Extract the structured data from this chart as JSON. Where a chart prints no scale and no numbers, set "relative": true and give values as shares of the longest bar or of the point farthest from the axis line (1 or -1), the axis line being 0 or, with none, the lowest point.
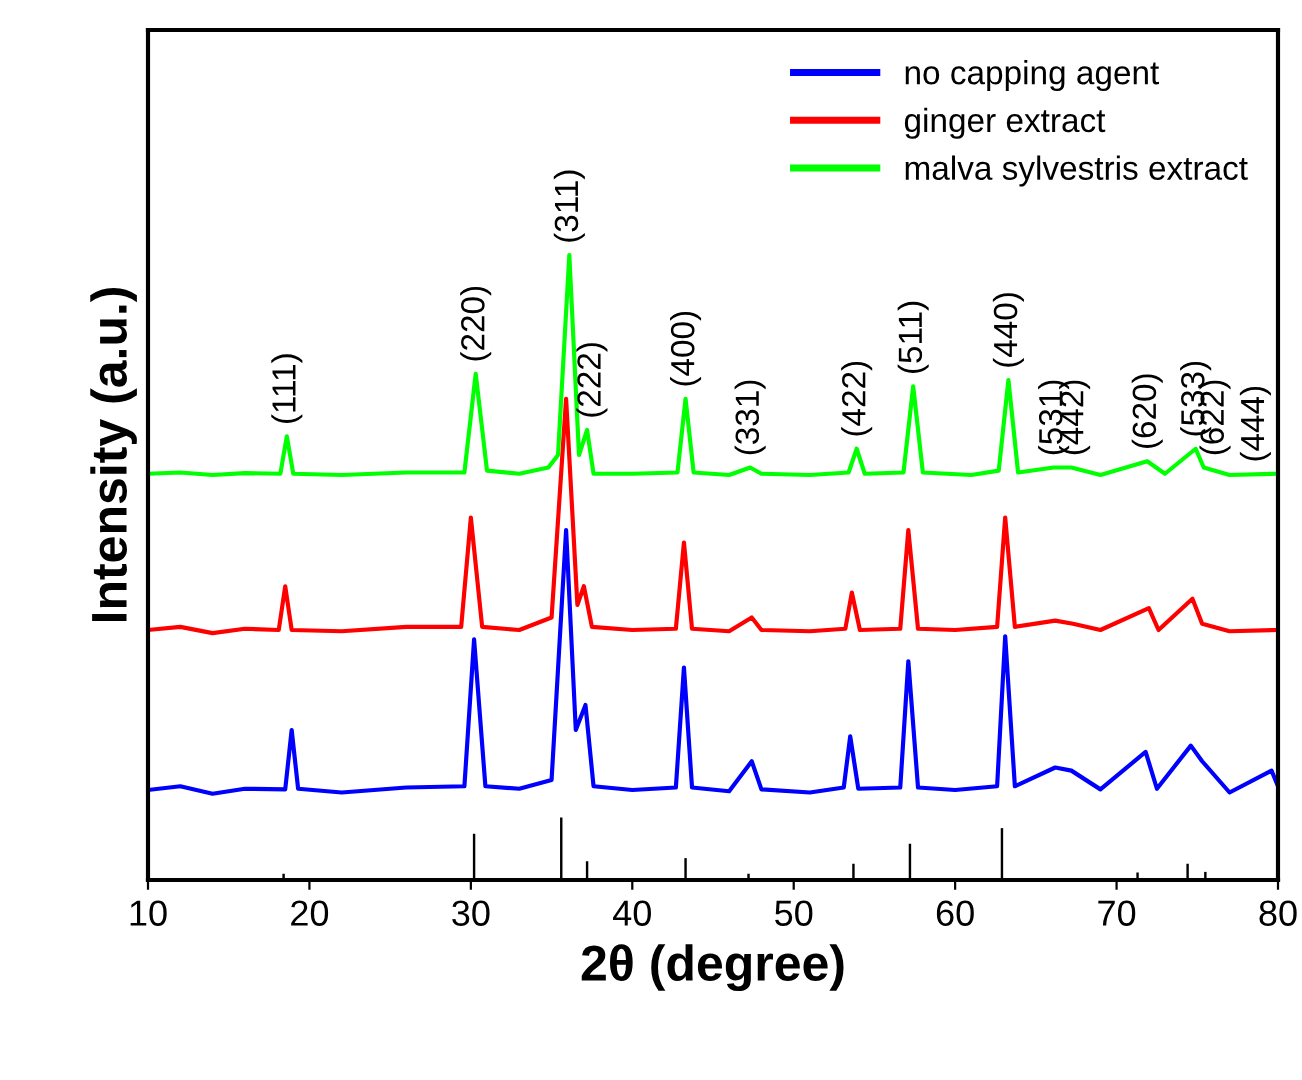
{
  "chart_data": {
    "type": "line",
    "relative": true,
    "xlabel": "2θ (degree)",
    "ylabel": "Intensity (a.u.)",
    "xlim": [
      10,
      80
    ],
    "xticks": [
      10,
      20,
      30,
      40,
      50,
      60,
      70,
      80
    ],
    "legend": "top right",
    "grid": false,
    "series": [
      {
        "name": "no capping agent",
        "color": "#0000ff",
        "x": [
          10,
          12,
          14,
          16,
          18.5,
          18.9,
          19.3,
          22,
          26,
          29.6,
          30.2,
          30.9,
          33,
          35.0,
          35.9,
          36.5,
          37.1,
          37.6,
          40,
          42.7,
          43.2,
          43.7,
          46,
          47.4,
          48,
          51,
          53.1,
          53.5,
          54.0,
          56.6,
          57.1,
          57.7,
          60,
          62.6,
          63.1,
          63.7,
          66.2,
          67.2,
          69,
          71.8,
          72.5,
          74.6,
          75.3,
          77,
          79.6,
          80
        ],
        "values": [
          0.144,
          0.15,
          0.138,
          0.146,
          0.145,
          0.24,
          0.146,
          0.14,
          0.148,
          0.15,
          0.385,
          0.15,
          0.146,
          0.16,
          0.56,
          0.24,
          0.28,
          0.15,
          0.144,
          0.148,
          0.34,
          0.148,
          0.142,
          0.19,
          0.145,
          0.14,
          0.148,
          0.23,
          0.146,
          0.148,
          0.35,
          0.148,
          0.144,
          0.15,
          0.39,
          0.15,
          0.18,
          0.175,
          0.145,
          0.205,
          0.146,
          0.215,
          0.19,
          0.14,
          0.175,
          0.15
        ]
      },
      {
        "name": "ginger extract",
        "color": "#ff0000",
        "x": [
          10,
          12,
          14,
          16,
          18.1,
          18.5,
          18.9,
          22,
          26,
          29.4,
          30.0,
          30.7,
          33,
          35.0,
          35.9,
          36.6,
          37.0,
          37.5,
          40,
          42.7,
          43.2,
          43.7,
          46,
          47.4,
          48,
          51,
          53.2,
          53.6,
          54.1,
          56.6,
          57.1,
          57.7,
          60,
          62.6,
          63.1,
          63.7,
          66.2,
          67.3,
          69,
          72.0,
          72.6,
          74.7,
          75.3,
          77,
          80
        ],
        "values": [
          0.4,
          0.405,
          0.395,
          0.402,
          0.4,
          0.47,
          0.4,
          0.398,
          0.405,
          0.405,
          0.58,
          0.405,
          0.4,
          0.42,
          0.77,
          0.44,
          0.47,
          0.405,
          0.4,
          0.402,
          0.54,
          0.402,
          0.398,
          0.42,
          0.4,
          0.398,
          0.402,
          0.46,
          0.4,
          0.402,
          0.56,
          0.402,
          0.4,
          0.405,
          0.58,
          0.405,
          0.415,
          0.41,
          0.4,
          0.435,
          0.4,
          0.45,
          0.41,
          0.398,
          0.4
        ]
      },
      {
        "name": "malva sylvestris extract",
        "color": "#00ff00",
        "x": [
          10,
          12,
          14,
          16,
          18.2,
          18.6,
          19.0,
          22,
          26,
          29.6,
          30.3,
          31.0,
          33,
          34.8,
          35.4,
          36.1,
          36.7,
          37.2,
          37.6,
          40,
          42.8,
          43.3,
          43.8,
          46,
          47.3,
          48,
          51,
          53.4,
          53.9,
          54.4,
          56.8,
          57.4,
          58.0,
          61,
          62.7,
          63.3,
          63.9,
          66.1,
          67.2,
          69,
          71.9,
          73,
          74.9,
          75.4,
          77,
          80
        ],
        "values": [
          0.65,
          0.652,
          0.648,
          0.651,
          0.65,
          0.71,
          0.65,
          0.648,
          0.652,
          0.652,
          0.81,
          0.655,
          0.65,
          0.66,
          0.68,
          1.0,
          0.68,
          0.72,
          0.65,
          0.65,
          0.652,
          0.77,
          0.652,
          0.648,
          0.66,
          0.65,
          0.648,
          0.652,
          0.69,
          0.65,
          0.652,
          0.79,
          0.652,
          0.648,
          0.655,
          0.8,
          0.652,
          0.66,
          0.66,
          0.648,
          0.67,
          0.65,
          0.69,
          0.66,
          0.648,
          0.65
        ]
      },
      {
        "type": "bar",
        "color": "#000000",
        "x": [
          18.4,
          30.2,
          35.6,
          37.2,
          43.3,
          47.2,
          53.7,
          57.2,
          62.9,
          71.3,
          74.4,
          75.5,
          79.3
        ],
        "values": [
          0.01,
          0.074,
          0.1,
          0.03,
          0.035,
          0.01,
          0.026,
          0.058,
          0.083,
          0.012,
          0.026,
          0.013,
          0.003
        ]
      }
    ],
    "annotations": [
      {
        "text": "(111)",
        "x": 18.6,
        "y": 0.71
      },
      {
        "text": "(220)",
        "x": 30.3,
        "y": 0.81
      },
      {
        "text": "(311)",
        "x": 36.1,
        "y": 1.0
      },
      {
        "text": "(222)",
        "x": 37.5,
        "y": 0.72
      },
      {
        "text": "(400)",
        "x": 43.3,
        "y": 0.77
      },
      {
        "text": "(331)",
        "x": 47.3,
        "y": 0.66
      },
      {
        "text": "(422)",
        "x": 53.9,
        "y": 0.69
      },
      {
        "text": "(511)",
        "x": 57.4,
        "y": 0.79
      },
      {
        "text": "(440)",
        "x": 63.3,
        "y": 0.8
      },
      {
        "text": "(531)",
        "x": 66.1,
        "y": 0.66
      },
      {
        "text": "(442)",
        "x": 67.4,
        "y": 0.66
      },
      {
        "text": "(620)",
        "x": 71.9,
        "y": 0.67
      },
      {
        "text": "(533)",
        "x": 74.9,
        "y": 0.69
      },
      {
        "text": "(622)",
        "x": 76.1,
        "y": 0.66
      },
      {
        "text": "(444)",
        "x": 78.6,
        "y": 0.65
      }
    ]
  }
}
